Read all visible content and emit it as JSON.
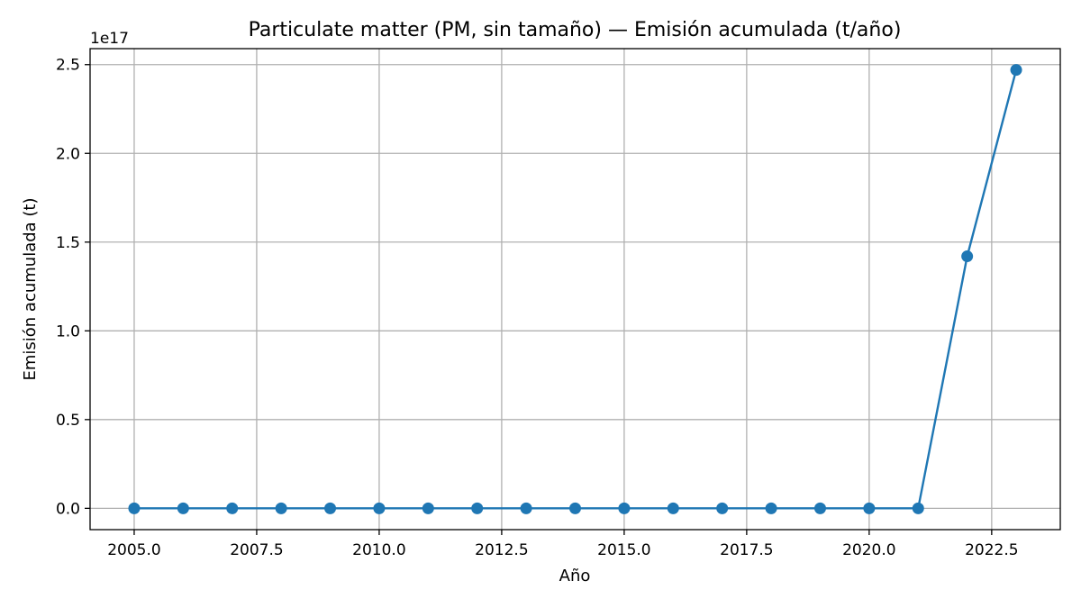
{
  "chart_data": {
    "type": "line",
    "title": "Particulate matter (PM, sin tamaño) — Emisión acumulada (t/año)",
    "xlabel": "Año",
    "ylabel": "Emisión acumulada (t)",
    "y_offset_label": "1e17",
    "y_scale": 1e+17,
    "xlim": [
      2004.1,
      2023.9
    ],
    "ylim": [
      -0.12,
      2.59
    ],
    "xticks": [
      2005.0,
      2007.5,
      2010.0,
      2012.5,
      2015.0,
      2017.5,
      2020.0,
      2022.5
    ],
    "xtick_labels": [
      "2005.0",
      "2007.5",
      "2010.0",
      "2012.5",
      "2015.0",
      "2017.5",
      "2020.0",
      "2022.5"
    ],
    "yticks": [
      0.0,
      0.5,
      1.0,
      1.5,
      2.0,
      2.5
    ],
    "ytick_labels": [
      "0.0",
      "0.5",
      "1.0",
      "1.5",
      "2.0",
      "2.5"
    ],
    "grid": true,
    "marker": "circle",
    "series": [
      {
        "color": "#1f77b4",
        "x": [
          2005,
          2006,
          2007,
          2008,
          2009,
          2010,
          2011,
          2012,
          2013,
          2014,
          2015,
          2016,
          2017,
          2018,
          2019,
          2020,
          2021,
          2022,
          2023
        ],
        "y": [
          0,
          0,
          0,
          0,
          0,
          0,
          0,
          0,
          0,
          0,
          0,
          0,
          0,
          0,
          0,
          0,
          0,
          1.42,
          2.47
        ]
      }
    ]
  }
}
